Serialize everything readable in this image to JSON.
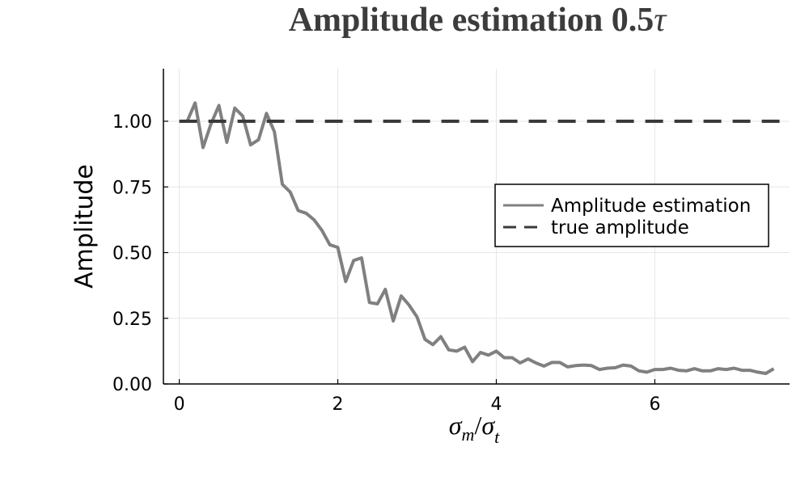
{
  "chart_data": {
    "type": "line",
    "title_main": "Amplitude estimation 0.5",
    "title_symbol": "τ",
    "xlabel_main": "σ",
    "xlabel_sub1": "m",
    "xlabel_slash": "/",
    "xlabel_sigma2": "σ",
    "xlabel_sub2": "t",
    "ylabel": "Amplitude",
    "xlim": [
      -0.2,
      7.7
    ],
    "ylim": [
      0,
      1.2
    ],
    "xticks": [
      0,
      2,
      4,
      6
    ],
    "xtick_labels": [
      "0",
      "2",
      "4",
      "6"
    ],
    "yticks": [
      0,
      0.25,
      0.5,
      0.75,
      1.0
    ],
    "ytick_labels": [
      "0.00",
      "0.25",
      "0.50",
      "0.75",
      "1.00"
    ],
    "grid": true,
    "legend_position": "right",
    "series": [
      {
        "name": "Amplitude estimation",
        "color": "#808080",
        "style": "solid",
        "x": [
          0.1,
          0.2,
          0.3,
          0.4,
          0.5,
          0.6,
          0.7,
          0.8,
          0.9,
          1.0,
          1.1,
          1.2,
          1.3,
          1.4,
          1.5,
          1.6,
          1.7,
          1.8,
          1.9,
          2.0,
          2.1,
          2.2,
          2.3,
          2.4,
          2.5,
          2.6,
          2.7,
          2.8,
          2.9,
          3.0,
          3.1,
          3.2,
          3.3,
          3.4,
          3.5,
          3.6,
          3.7,
          3.8,
          3.9,
          4.0,
          4.1,
          4.2,
          4.3,
          4.4,
          4.5,
          4.6,
          4.7,
          4.8,
          4.9,
          5.0,
          5.1,
          5.2,
          5.3,
          5.4,
          5.5,
          5.6,
          5.7,
          5.8,
          5.9,
          6.0,
          6.1,
          6.2,
          6.3,
          6.4,
          6.5,
          6.6,
          6.7,
          6.8,
          6.9,
          7.0,
          7.1,
          7.2,
          7.3,
          7.4,
          7.5
        ],
        "y": [
          1.0,
          1.07,
          0.9,
          0.99,
          1.06,
          0.92,
          1.05,
          1.02,
          0.91,
          0.93,
          1.03,
          0.96,
          0.76,
          0.73,
          0.66,
          0.65,
          0.625,
          0.585,
          0.53,
          0.52,
          0.39,
          0.47,
          0.48,
          0.31,
          0.305,
          0.36,
          0.24,
          0.335,
          0.3,
          0.255,
          0.17,
          0.15,
          0.18,
          0.13,
          0.125,
          0.14,
          0.085,
          0.12,
          0.11,
          0.125,
          0.1,
          0.1,
          0.08,
          0.095,
          0.08,
          0.068,
          0.082,
          0.082,
          0.065,
          0.07,
          0.072,
          0.07,
          0.055,
          0.06,
          0.062,
          0.072,
          0.068,
          0.05,
          0.045,
          0.055,
          0.055,
          0.06,
          0.052,
          0.05,
          0.058,
          0.05,
          0.05,
          0.058,
          0.055,
          0.06,
          0.052,
          0.052,
          0.045,
          0.04,
          0.058
        ]
      },
      {
        "name": "true amplitude",
        "color": "#3a3a3a",
        "style": "dashed",
        "x": [
          0.0,
          7.7
        ],
        "y": [
          1.0,
          1.0
        ]
      }
    ]
  }
}
